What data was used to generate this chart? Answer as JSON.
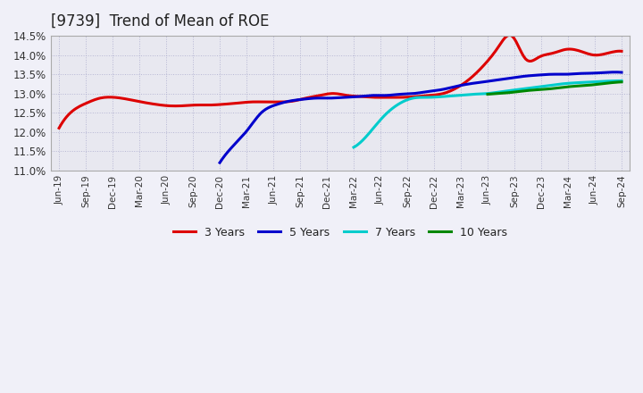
{
  "title": "[9739]  Trend of Mean of ROE",
  "title_fontsize": 12,
  "background_color": "#f0f0f8",
  "plot_bg_color": "#e8e8f0",
  "ylim": [
    0.11,
    0.145
  ],
  "yticks": [
    0.11,
    0.115,
    0.12,
    0.125,
    0.13,
    0.135,
    0.14,
    0.145
  ],
  "grid_color": "#aaaacc",
  "series": {
    "3 Years": {
      "color": "#dd0000",
      "start_label": "Jun-19",
      "data": [
        0.121,
        0.1255,
        0.1275,
        0.1288,
        0.129,
        0.1285,
        0.1278,
        0.1272,
        0.1268,
        0.1268,
        0.127,
        0.127,
        0.1272,
        0.1275,
        0.1278,
        0.1278,
        0.1278,
        0.128,
        0.1288,
        0.1295,
        0.13,
        0.1295,
        0.1292,
        0.129,
        0.129,
        0.129,
        0.1292,
        0.1295,
        0.13,
        0.1315,
        0.134,
        0.1375,
        0.142,
        0.145,
        0.139,
        0.1395,
        0.1405,
        0.1415,
        0.141,
        0.14,
        0.1405,
        0.141
      ]
    },
    "5 Years": {
      "color": "#0000cc",
      "start_label": "Dec-20",
      "data": [
        0.112,
        0.1165,
        0.1205,
        0.125,
        0.127,
        0.128,
        0.1285,
        0.1288,
        0.1288,
        0.129,
        0.1292,
        0.1295,
        0.1295,
        0.1298,
        0.13,
        0.1305,
        0.131,
        0.1318,
        0.1325,
        0.133,
        0.1335,
        0.134,
        0.1345,
        0.1348,
        0.135,
        0.135,
        0.1352,
        0.1353,
        0.1355,
        0.1355
      ]
    },
    "7 Years": {
      "color": "#00cccc",
      "start_label": "Mar-22",
      "data": [
        0.116,
        0.1195,
        0.124,
        0.1272,
        0.1288,
        0.129,
        0.1292,
        0.1295,
        0.1298,
        0.13,
        0.1305,
        0.131,
        0.1315,
        0.132,
        0.1325,
        0.1328,
        0.133,
        0.1332,
        0.1333
      ]
    },
    "10 Years": {
      "color": "#008800",
      "start_label": "Jun-23",
      "data": [
        0.1298,
        0.13,
        0.1302,
        0.1305,
        0.1308,
        0.131,
        0.1312,
        0.1315,
        0.1318,
        0.132,
        0.1322,
        0.1325,
        0.1328,
        0.133
      ]
    }
  },
  "x_labels": [
    "Jun-19",
    "Sep-19",
    "Dec-19",
    "Mar-20",
    "Jun-20",
    "Sep-20",
    "Dec-20",
    "Mar-21",
    "Jun-21",
    "Sep-21",
    "Dec-21",
    "Mar-22",
    "Jun-22",
    "Sep-22",
    "Dec-22",
    "Mar-23",
    "Jun-23",
    "Sep-23",
    "Dec-23",
    "Mar-24",
    "Jun-24",
    "Sep-24"
  ],
  "legend_labels": [
    "3 Years",
    "5 Years",
    "7 Years",
    "10 Years"
  ],
  "legend_colors": [
    "#dd0000",
    "#0000cc",
    "#00cccc",
    "#008800"
  ]
}
